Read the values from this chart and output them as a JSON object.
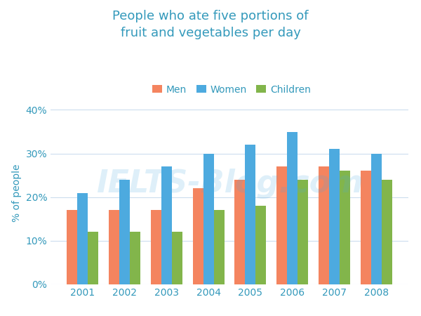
{
  "title": "People who ate five portions of\nfruit and vegetables per day",
  "ylabel": "% of people",
  "years": [
    2001,
    2002,
    2003,
    2004,
    2005,
    2006,
    2007,
    2008
  ],
  "men": [
    17,
    17,
    17,
    22,
    24,
    27,
    27,
    26
  ],
  "women": [
    21,
    24,
    27,
    30,
    32,
    35,
    31,
    30
  ],
  "children": [
    12,
    12,
    12,
    17,
    18,
    24,
    26,
    24
  ],
  "color_men": "#F4845F",
  "color_women": "#4DAADF",
  "color_children": "#82B54B",
  "title_color": "#3399BB",
  "ylabel_color": "#3399BB",
  "tick_color": "#3399BB",
  "yticks": [
    0,
    10,
    20,
    30,
    40
  ],
  "ylim": [
    0,
    42
  ],
  "background_color": "#FFFFFF",
  "grid_color": "#CCDDEE",
  "bar_width": 0.25,
  "legend_labels": [
    "Men",
    "Women",
    "Children"
  ],
  "watermark": "IELTS-Blog.com"
}
